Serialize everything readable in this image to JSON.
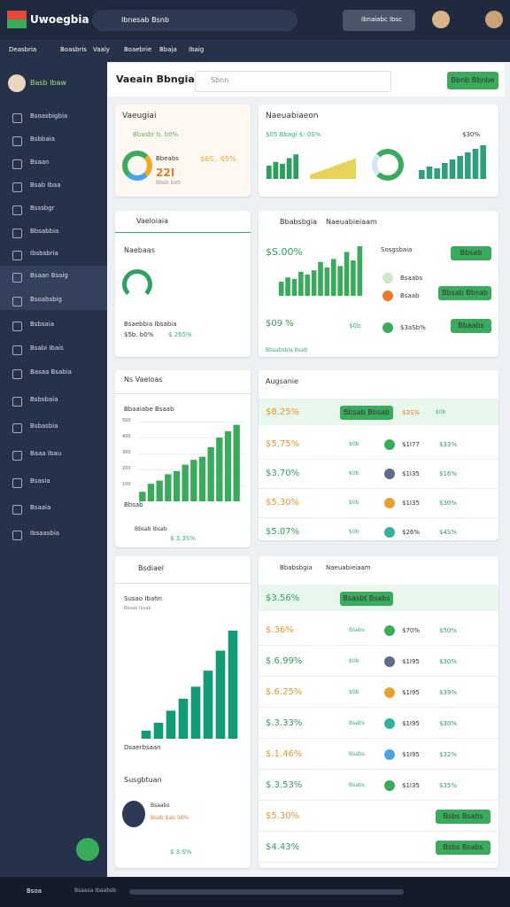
{
  "header": {
    "brand": "Uwoegbia",
    "search": "Ibnesab Bsnb",
    "user": "Ibnaiabc Ibsc"
  },
  "nav": [
    "Deasbria",
    "Boasbris",
    "Vaaly",
    "Boaebrie",
    "Bbaja",
    "Ibaig"
  ],
  "sidebar": {
    "profile": "Basb Ibaw",
    "items": [
      "Bsoasbigbia",
      "Bsbbaia",
      "Bsaan",
      "Bsab Ibaa",
      "Bsssbgr",
      "Bbsabbia",
      "Ibsbsbria",
      "Bsaan Bsaig",
      "Bsoabsbig",
      "Bsbsaia",
      "Bsabi Ibais",
      "Basaa Bsabia",
      "Bsbsbaia",
      "Bsbasbia",
      "Baaa Ibau",
      "Bsasia",
      "Bsaaia",
      "Ibsaasbia"
    ]
  },
  "main": {
    "title": "Vaeain Bbngia",
    "search": "Sbnn",
    "cta": "Bbnb Bbnbe"
  },
  "card1": {
    "title": "Vaeugiai",
    "sub": "Bbasbr b. b0%",
    "label": "Bbeabs",
    "value": "$6S.. 65%",
    "big": "22I",
    "note": "Bbsb bob"
  },
  "card2": {
    "title": "Naeuabiaeon",
    "sub": "$05 Bbagi $: 0S%",
    "stat": "$30%",
    "bars1": [
      14,
      18,
      16,
      22,
      26
    ],
    "bars2": [
      10,
      14,
      12,
      18,
      22,
      26,
      30,
      34,
      38
    ]
  },
  "card3": {
    "title": "Vaeloiaia",
    "label": "Naebaas",
    "sub": "Bsaebbia Ibsabia",
    "value": "$5b. b0%",
    "pct": "$ 265%"
  },
  "card4": {
    "title": "Bbabsbgia",
    "subtitle": "Naeuabieiaam",
    "stat": "$S.00%",
    "bars": [
      20,
      26,
      24,
      34,
      30,
      36,
      48,
      40,
      52,
      42,
      62,
      50,
      70
    ],
    "stat2": "$09 %",
    "stat3": "$0b",
    "list_title": "Sosgsbaia",
    "items": [
      "Bsaabs",
      "Bsaab",
      "$3aSb%"
    ],
    "buttons": [
      "Bbsab",
      "Bbsab Bbsab",
      "Bbaabs"
    ],
    "foot": "Bbsabsbia Bsab"
  },
  "card5": {
    "title": "Ns Vaeioas",
    "chart_title": "Bbaaiabe Bsaab",
    "ylim": [
      0,
      500
    ],
    "yticks": [
      100,
      200,
      300,
      400,
      500
    ],
    "bars": [
      60,
      110,
      130,
      170,
      190,
      230,
      260,
      280,
      340,
      400,
      440,
      480
    ],
    "foot": "Bbsab",
    "note": "Bbsab Ibsab",
    "pct": "$ 3.3S%"
  },
  "card6": {
    "title": "Augsanie",
    "head": {
      "value": "$8.25%",
      "button": "Bbsab Bbsab",
      "pct": "$3S%",
      "tag": "$0b"
    },
    "rows": [
      {
        "value": "$5,75%",
        "tag": "$0b",
        "amount": "$1I77",
        "pct": "$33%"
      },
      {
        "value": "$3.70%",
        "tag": "$0b",
        "amount": "$1I35",
        "pct": "$16%"
      },
      {
        "value": "$5.30%",
        "tag": "$0b",
        "amount": "$1I35",
        "pct": "$30%"
      },
      {
        "value": "$5.07%",
        "tag": "$0b",
        "amount": "$26%",
        "pct": "$4S%"
      }
    ]
  },
  "card7": {
    "title": "Bsdiael",
    "chart_title": "Susao Ibahn",
    "sub": "Bbsab Ibsab",
    "bars": [
      4,
      8,
      14,
      20,
      26,
      34,
      44,
      54
    ],
    "foot": "Dsaerbsaan",
    "profile_title": "Susgbtuan",
    "name": "Bsaabs",
    "role": "Bsab $ab 50%",
    "pct": "$ 3.S%"
  },
  "card8": {
    "title": "Bbabsbgia",
    "subtitle": "Naeuabieiaam",
    "head": {
      "value": "$3.56%",
      "button": "Bsasbt Bsabs"
    },
    "rows": [
      {
        "value": "$.36%",
        "tag": "Bsabs",
        "amount": "$70%",
        "pct": "$50%"
      },
      {
        "value": "$.6.99%",
        "tag": "$0b",
        "amount": "$1I95",
        "pct": "$30%"
      },
      {
        "value": "$.6.25%",
        "tag": "$0b",
        "amount": "$1I95",
        "pct": "$39%"
      },
      {
        "value": "$.3.33%",
        "tag": "Bsabs",
        "amount": "$1I95",
        "pct": "$30%"
      },
      {
        "value": "$.1.46%",
        "tag": "Bsabs",
        "amount": "$1I95",
        "pct": "$32%"
      },
      {
        "value": "$.3.53%",
        "tag": "Bsabs",
        "amount": "$1I35",
        "pct": "$35%"
      },
      {
        "value": "$5.30%",
        "button": "Bsbs Bsabs"
      },
      {
        "value": "$4.43%",
        "button": "Bsbs Bsabs"
      }
    ]
  },
  "footer": {
    "left": "Bsoa",
    "mid": "Bsaasa Ibaabsb"
  }
}
